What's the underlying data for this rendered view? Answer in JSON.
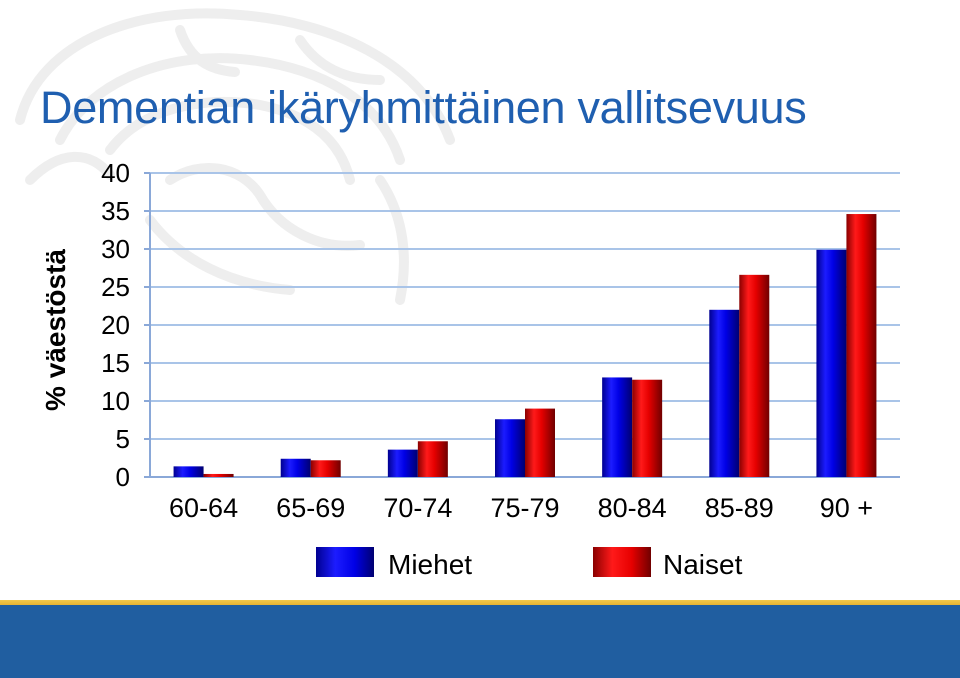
{
  "title": "Dementian ikäryhmittäinen vallitsevuus",
  "colors": {
    "title": "#1f5fb0",
    "men": "#0000e6",
    "women": "#e60000",
    "grid": "#a9c4e8",
    "footer": "#205ea0",
    "footer_stripe": "#f2c94c"
  },
  "legend": {
    "men": "Miehet",
    "women": "Naiset"
  },
  "chart_data": {
    "type": "bar",
    "title": "",
    "xlabel": "",
    "ylabel": "% väestöstä",
    "ylim": [
      0,
      40
    ],
    "yticks": [
      0,
      5,
      10,
      15,
      20,
      25,
      30,
      35,
      40
    ],
    "grid": true,
    "legend_position": "bottom",
    "categories": [
      "60-64",
      "65-69",
      "70-74",
      "75-79",
      "80-84",
      "85-89",
      "90 +"
    ],
    "series": [
      {
        "name": "Miehet",
        "values": [
          1.4,
          2.4,
          3.6,
          7.6,
          13.1,
          22.0,
          29.9
        ]
      },
      {
        "name": "Naiset",
        "values": [
          0.4,
          2.2,
          4.7,
          9.0,
          12.8,
          26.6,
          34.6
        ]
      }
    ]
  }
}
